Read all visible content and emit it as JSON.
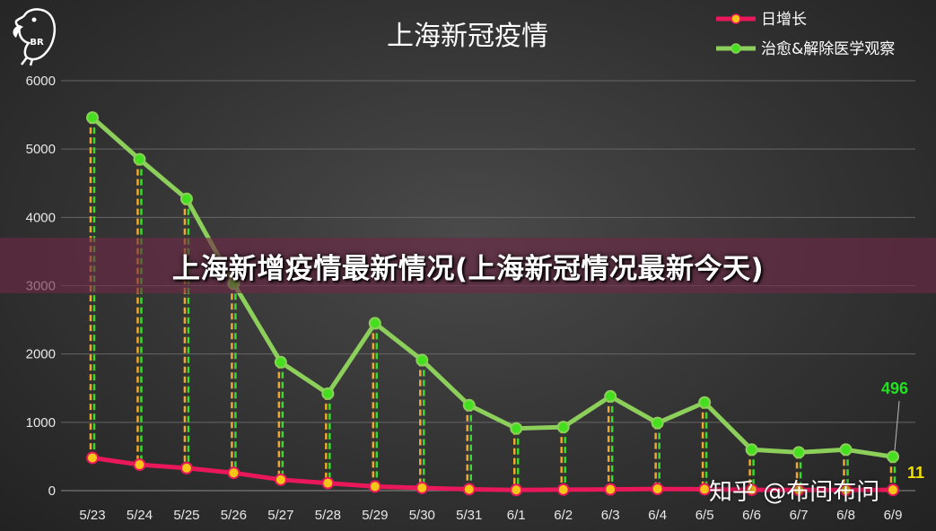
{
  "banner": "上海新增疫情最新情况(上海新冠情况最新今天)",
  "watermark": "知乎 @布间布问",
  "logo_text": "BR",
  "chart_data": {
    "type": "line",
    "title": "上海新冠疫情",
    "categories": [
      "5/23",
      "5/24",
      "5/25",
      "5/26",
      "5/27",
      "5/28",
      "5/29",
      "5/30",
      "5/31",
      "6/1",
      "6/2",
      "6/3",
      "6/4",
      "6/5",
      "6/6",
      "6/7",
      "6/8",
      "6/9"
    ],
    "series": [
      {
        "name": "日增长",
        "color": "#e8185a",
        "marker": "#f5c518",
        "values": [
          480,
          380,
          330,
          260,
          160,
          110,
          60,
          40,
          20,
          10,
          15,
          18,
          25,
          20,
          12,
          10,
          10,
          11
        ]
      },
      {
        "name": "治愈&解除医学观察",
        "color": "#8ccf5a",
        "marker": "#44e020",
        "values": [
          5460,
          4850,
          4270,
          3030,
          1880,
          1420,
          2450,
          1910,
          1250,
          910,
          930,
          1380,
          990,
          1290,
          600,
          560,
          600,
          496
        ]
      }
    ],
    "ylim": [
      0,
      6000
    ],
    "yticks": [
      0,
      1000,
      2000,
      3000,
      4000,
      5000,
      6000
    ],
    "grid": true,
    "legend": "top-right",
    "annotations": [
      {
        "series": "治愈&解除医学观察",
        "category": "6/9",
        "text": "496",
        "color": "#22e022"
      },
      {
        "series": "日增长",
        "category": "6/9",
        "text": "11",
        "color": "#f0e000"
      }
    ]
  }
}
